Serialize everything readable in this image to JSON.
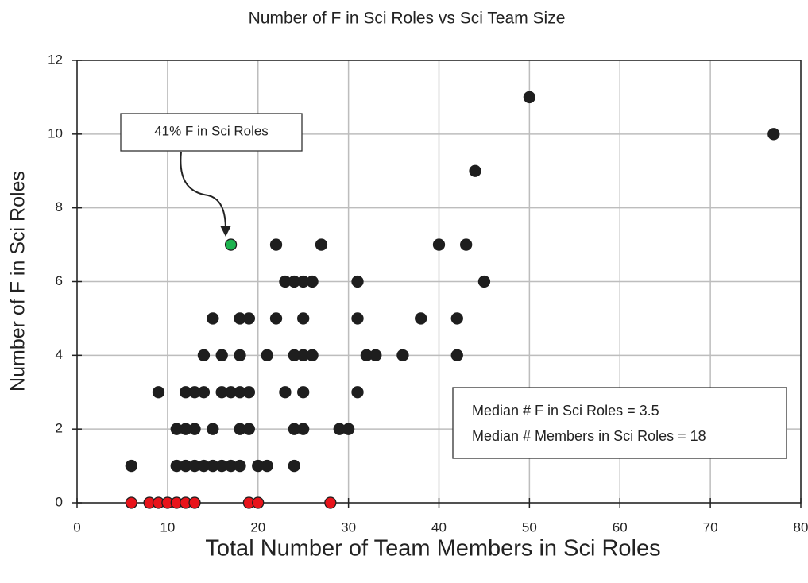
{
  "chart_data": {
    "type": "scatter",
    "title": "Number of F in Sci Roles vs Sci Team Size",
    "x_label": "Total Number of Team Members in Sci Roles",
    "y_label": "Number of F in Sci Roles",
    "xlim": [
      0,
      80
    ],
    "ylim": [
      0,
      12
    ],
    "xticks": [
      0,
      10,
      20,
      30,
      40,
      50,
      60,
      70,
      80
    ],
    "yticks": [
      0,
      2,
      4,
      6,
      8,
      10,
      12
    ],
    "grid": true,
    "series": [
      {
        "color": "#1e1e1e",
        "x": [
          6,
          11,
          12,
          13,
          14,
          15,
          16,
          17,
          18,
          20,
          21,
          24,
          11,
          12,
          13,
          15,
          18,
          19,
          24,
          25,
          29,
          30,
          9,
          12,
          13,
          14,
          16,
          17,
          18,
          19,
          23,
          25,
          31,
          14,
          16,
          18,
          21,
          24,
          25,
          26,
          32,
          33,
          36,
          42,
          15,
          18,
          19,
          22,
          25,
          31,
          38,
          42,
          23,
          24,
          25,
          26,
          31,
          45,
          22,
          27,
          40,
          43,
          44,
          77,
          50
        ],
        "values": [
          1,
          1,
          1,
          1,
          1,
          1,
          1,
          1,
          1,
          1,
          1,
          1,
          2,
          2,
          2,
          2,
          2,
          2,
          2,
          2,
          2,
          2,
          3,
          3,
          3,
          3,
          3,
          3,
          3,
          3,
          3,
          3,
          3,
          4,
          4,
          4,
          4,
          4,
          4,
          4,
          4,
          4,
          4,
          4,
          5,
          5,
          5,
          5,
          5,
          5,
          5,
          5,
          6,
          6,
          6,
          6,
          6,
          6,
          7,
          7,
          7,
          7,
          9,
          10,
          11
        ]
      },
      {
        "color": "#e8141b",
        "x": [
          6,
          8,
          9,
          10,
          11,
          12,
          13,
          19,
          20,
          28
        ],
        "values": [
          0,
          0,
          0,
          0,
          0,
          0,
          0,
          0,
          0,
          0
        ]
      },
      {
        "color": "#1db34f",
        "x": [
          17
        ],
        "values": [
          7
        ]
      }
    ],
    "annotations": [
      "41% F in Sci Roles",
      "Median # F in Sci Roles = 3.5",
      "Median # Members in Sci Roles = 18"
    ]
  }
}
